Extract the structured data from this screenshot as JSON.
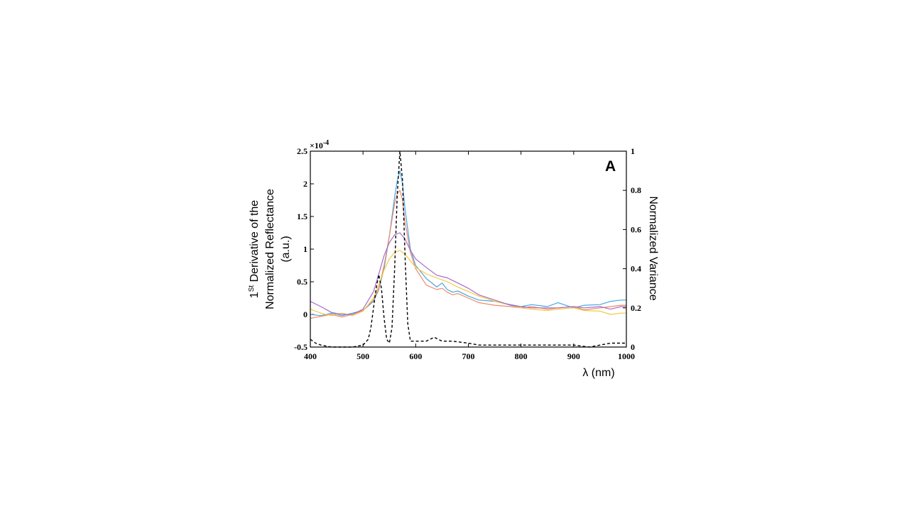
{
  "chart_data": {
    "type": "line",
    "panel_label": "A",
    "xlabel": "λ (nm)",
    "xlim": [
      400,
      1000
    ],
    "x_ticks": [
      "400",
      "500",
      "600",
      "700",
      "800",
      "900",
      "1000"
    ],
    "ylabel_left": {
      "line1_prefix": "1",
      "line1_sup": "St",
      "line1_rest": " Derivative  of the",
      "line2": "Normalized  Reflectance",
      "line3": "(a.u.)"
    },
    "ylim_left": [
      -0.5,
      2.5
    ],
    "y_left_ticks": [
      "-0.5",
      "0",
      "0.5",
      "1",
      "1.5",
      "2",
      "2.5"
    ],
    "y_left_scale": "×10",
    "y_left_exponent": "-4",
    "ylabel_right": "Normalized Variance",
    "ylim_right": [
      0,
      1
    ],
    "y_right_ticks": [
      "0",
      "0.2",
      "0.4",
      "0.6",
      "0.8",
      "1"
    ],
    "series": [
      {
        "name": "blue",
        "axis": "left",
        "color": "#4aa6df",
        "dashed": false,
        "x": [
          400,
          420,
          440,
          460,
          480,
          500,
          520,
          530,
          540,
          550,
          560,
          565,
          570,
          575,
          580,
          590,
          600,
          620,
          640,
          650,
          660,
          670,
          680,
          700,
          720,
          750,
          780,
          800,
          820,
          850,
          870,
          900,
          920,
          950,
          970,
          990,
          1000
        ],
        "y": [
          0.0,
          -0.02,
          0.02,
          -0.02,
          0.02,
          0.06,
          0.2,
          0.38,
          0.7,
          1.2,
          1.8,
          2.05,
          2.2,
          2.0,
          1.6,
          1.0,
          0.75,
          0.55,
          0.42,
          0.48,
          0.38,
          0.34,
          0.36,
          0.28,
          0.22,
          0.2,
          0.15,
          0.12,
          0.15,
          0.12,
          0.18,
          0.1,
          0.14,
          0.15,
          0.2,
          0.22,
          0.22
        ]
      },
      {
        "name": "orange",
        "axis": "left",
        "color": "#ee8a6c",
        "dashed": false,
        "x": [
          400,
          420,
          440,
          460,
          480,
          500,
          520,
          530,
          540,
          550,
          560,
          565,
          570,
          575,
          580,
          590,
          600,
          620,
          640,
          650,
          660,
          670,
          680,
          700,
          720,
          750,
          780,
          800,
          820,
          850,
          870,
          900,
          920,
          950,
          970,
          990,
          1000
        ],
        "y": [
          -0.06,
          -0.03,
          0.0,
          -0.04,
          0.0,
          0.06,
          0.22,
          0.4,
          0.75,
          1.2,
          1.7,
          1.85,
          1.9,
          1.75,
          1.4,
          0.95,
          0.7,
          0.45,
          0.38,
          0.4,
          0.34,
          0.3,
          0.32,
          0.25,
          0.18,
          0.14,
          0.12,
          0.1,
          0.12,
          0.08,
          0.1,
          0.12,
          0.07,
          0.1,
          0.12,
          0.14,
          0.14
        ]
      },
      {
        "name": "yellow",
        "axis": "left",
        "color": "#f5c842",
        "dashed": false,
        "x": [
          400,
          420,
          440,
          460,
          480,
          500,
          520,
          530,
          540,
          550,
          560,
          570,
          580,
          590,
          600,
          620,
          640,
          660,
          680,
          700,
          720,
          750,
          780,
          800,
          820,
          850,
          870,
          900,
          920,
          950,
          970,
          990,
          1000
        ],
        "y": [
          0.08,
          0.02,
          -0.02,
          0.02,
          -0.02,
          0.05,
          0.25,
          0.45,
          0.68,
          0.85,
          0.95,
          0.98,
          0.92,
          0.82,
          0.72,
          0.62,
          0.56,
          0.5,
          0.42,
          0.35,
          0.28,
          0.2,
          0.14,
          0.1,
          0.08,
          0.06,
          0.08,
          0.1,
          0.06,
          0.05,
          0.0,
          0.02,
          0.02
        ]
      },
      {
        "name": "purple",
        "axis": "left",
        "color": "#a66bc8",
        "dashed": false,
        "x": [
          400,
          420,
          440,
          460,
          480,
          500,
          520,
          530,
          540,
          550,
          560,
          570,
          580,
          590,
          600,
          620,
          640,
          660,
          680,
          700,
          720,
          750,
          780,
          800,
          820,
          850,
          870,
          900,
          920,
          950,
          970,
          990,
          1000
        ],
        "y": [
          0.2,
          0.12,
          0.03,
          0.0,
          0.0,
          0.08,
          0.35,
          0.62,
          0.9,
          1.1,
          1.22,
          1.25,
          1.15,
          0.98,
          0.85,
          0.72,
          0.6,
          0.56,
          0.48,
          0.4,
          0.3,
          0.22,
          0.14,
          0.12,
          0.1,
          0.1,
          0.1,
          0.12,
          0.1,
          0.12,
          0.08,
          0.12,
          0.12
        ]
      },
      {
        "name": "normalized variance",
        "axis": "right",
        "color": "#000000",
        "dashed": true,
        "x": [
          400,
          410,
          420,
          440,
          460,
          480,
          500,
          510,
          515,
          520,
          525,
          530,
          535,
          540,
          545,
          550,
          555,
          560,
          565,
          570,
          575,
          580,
          585,
          590,
          600,
          620,
          635,
          650,
          670,
          700,
          720,
          750,
          800,
          850,
          900,
          930,
          950,
          970,
          990,
          1000
        ],
        "y": [
          0.04,
          0.02,
          0.01,
          0.0,
          0.0,
          0.0,
          0.01,
          0.04,
          0.1,
          0.2,
          0.3,
          0.37,
          0.3,
          0.15,
          0.04,
          0.02,
          0.1,
          0.4,
          0.78,
          1.0,
          0.85,
          0.45,
          0.12,
          0.03,
          0.03,
          0.03,
          0.05,
          0.03,
          0.03,
          0.02,
          0.01,
          0.01,
          0.01,
          0.01,
          0.01,
          0.0,
          0.01,
          0.02,
          0.02,
          0.02
        ]
      }
    ]
  }
}
